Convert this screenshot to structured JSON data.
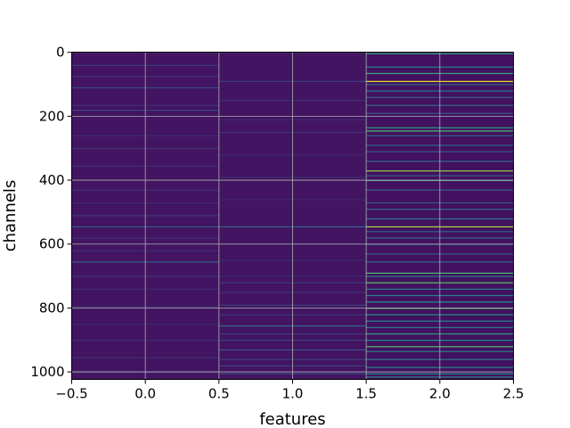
{
  "chart_data": {
    "type": "heatmap",
    "title": "",
    "xlabel": "features",
    "ylabel": "channels",
    "x_ticks": [
      -0.5,
      0.0,
      0.5,
      1.0,
      1.5,
      2.0,
      2.5
    ],
    "x_tick_labels": [
      "−0.5",
      "0.0",
      "0.5",
      "1.0",
      "1.5",
      "2.0",
      "2.5"
    ],
    "y_ticks": [
      0,
      200,
      400,
      600,
      800,
      1000
    ],
    "y_tick_labels": [
      "0",
      "200",
      "400",
      "600",
      "800",
      "1000"
    ],
    "xlim": [
      -0.5,
      2.5
    ],
    "ylim": [
      1023.5,
      -0.5
    ],
    "y_inverted": true,
    "grid": true,
    "colormap": "viridis",
    "n_rows": 1024,
    "n_columns": 3,
    "background_value": 0.05,
    "column_base_values": [
      0.06,
      0.06,
      0.05
    ],
    "column_stripes": [
      {
        "column": 0,
        "rows": [
          [
            40,
            0.18
          ],
          [
            75,
            0.15
          ],
          [
            110,
            0.22
          ],
          [
            165,
            0.14
          ],
          [
            180,
            0.2
          ],
          [
            260,
            0.13
          ],
          [
            300,
            0.16
          ],
          [
            355,
            0.14
          ],
          [
            430,
            0.15
          ],
          [
            470,
            0.13
          ],
          [
            510,
            0.17
          ],
          [
            545,
            0.28
          ],
          [
            580,
            0.15
          ],
          [
            620,
            0.14
          ],
          [
            655,
            0.3
          ],
          [
            700,
            0.16
          ],
          [
            740,
            0.13
          ],
          [
            795,
            0.15
          ],
          [
            850,
            0.12
          ],
          [
            900,
            0.14
          ],
          [
            955,
            0.15
          ],
          [
            1000,
            0.16
          ]
        ]
      },
      {
        "column": 1,
        "rows": [
          [
            90,
            0.2
          ],
          [
            150,
            0.14
          ],
          [
            210,
            0.13
          ],
          [
            250,
            0.15
          ],
          [
            320,
            0.12
          ],
          [
            390,
            0.14
          ],
          [
            460,
            0.12
          ],
          [
            545,
            0.32
          ],
          [
            600,
            0.12
          ],
          [
            650,
            0.14
          ],
          [
            700,
            0.13
          ],
          [
            720,
            0.18
          ],
          [
            750,
            0.15
          ],
          [
            790,
            0.2
          ],
          [
            820,
            0.16
          ],
          [
            855,
            0.35
          ],
          [
            880,
            0.18
          ],
          [
            900,
            0.2
          ],
          [
            930,
            0.26
          ],
          [
            960,
            0.18
          ],
          [
            980,
            0.2
          ],
          [
            1005,
            0.22
          ]
        ]
      },
      {
        "column": 2,
        "rows": [
          [
            3,
            0.55
          ],
          [
            45,
            0.45
          ],
          [
            65,
            0.6
          ],
          [
            90,
            0.97
          ],
          [
            100,
            0.35
          ],
          [
            120,
            0.4
          ],
          [
            140,
            0.3
          ],
          [
            165,
            0.35
          ],
          [
            190,
            0.28
          ],
          [
            235,
            0.55
          ],
          [
            245,
            0.7
          ],
          [
            260,
            0.3
          ],
          [
            290,
            0.35
          ],
          [
            310,
            0.28
          ],
          [
            340,
            0.32
          ],
          [
            370,
            0.82
          ],
          [
            385,
            0.3
          ],
          [
            400,
            0.6
          ],
          [
            430,
            0.3
          ],
          [
            470,
            0.28
          ],
          [
            490,
            0.35
          ],
          [
            520,
            0.4
          ],
          [
            545,
            0.88
          ],
          [
            560,
            0.3
          ],
          [
            580,
            0.35
          ],
          [
            600,
            0.4
          ],
          [
            630,
            0.3
          ],
          [
            655,
            0.35
          ],
          [
            690,
            0.68
          ],
          [
            700,
            0.45
          ],
          [
            720,
            0.72
          ],
          [
            740,
            0.4
          ],
          [
            760,
            0.45
          ],
          [
            780,
            0.5
          ],
          [
            800,
            0.65
          ],
          [
            820,
            0.5
          ],
          [
            840,
            0.45
          ],
          [
            860,
            0.4
          ],
          [
            880,
            0.55
          ],
          [
            900,
            0.5
          ],
          [
            920,
            0.7
          ],
          [
            935,
            0.45
          ],
          [
            960,
            0.4
          ],
          [
            985,
            0.45
          ],
          [
            1005,
            0.5
          ],
          [
            1015,
            0.45
          ]
        ]
      }
    ]
  }
}
